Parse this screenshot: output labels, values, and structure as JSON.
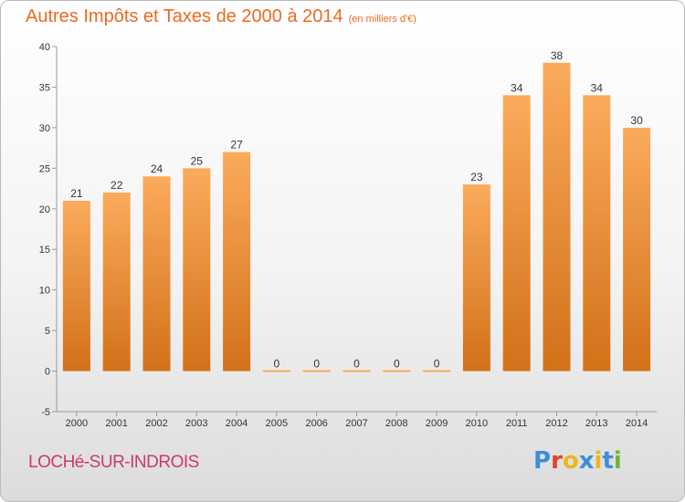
{
  "header": {
    "title": "Autres Impôts et Taxes de 2000 à 2014",
    "subtitle": "(en milliers d'€)"
  },
  "footer": {
    "commune": "LOCHé-SUR-INDROIS",
    "logo": "Proxiti"
  },
  "colors": {
    "title": "#ea6a23",
    "commune": "#cc3a6a",
    "bar_top": "#fbab5c",
    "bar_bottom": "#d27118",
    "logo_letters": [
      "#3b8fd6",
      "#e5412b",
      "#e8b81d",
      "#3b8fd6",
      "#e8b81d",
      "#3b8fd6",
      "#6db834"
    ]
  },
  "chart_data": {
    "type": "bar",
    "title": "Autres Impôts et Taxes de 2000 à 2014",
    "subtitle": "(en milliers d'€)",
    "categories": [
      "2000",
      "2001",
      "2002",
      "2003",
      "2004",
      "2005",
      "2006",
      "2007",
      "2008",
      "2009",
      "2010",
      "2011",
      "2012",
      "2013",
      "2014"
    ],
    "values": [
      21,
      22,
      24,
      25,
      27,
      0,
      0,
      0,
      0,
      0,
      23,
      34,
      38,
      34,
      30
    ],
    "data_labels": [
      "21",
      "22",
      "24",
      "25",
      "27",
      "0",
      "0",
      "0",
      "0",
      "0",
      "23",
      "34",
      "38",
      "34",
      "30"
    ],
    "y_ticks": [
      -5,
      0,
      5,
      10,
      15,
      20,
      25,
      30,
      35,
      40
    ],
    "y_tick_labels": [
      "-5",
      "0",
      "5",
      "10",
      "15",
      "20",
      "25",
      "30",
      "35",
      "40"
    ],
    "ylim": [
      -5,
      40
    ],
    "xlabel": "",
    "ylabel": "",
    "grid": false,
    "legend": "none"
  }
}
